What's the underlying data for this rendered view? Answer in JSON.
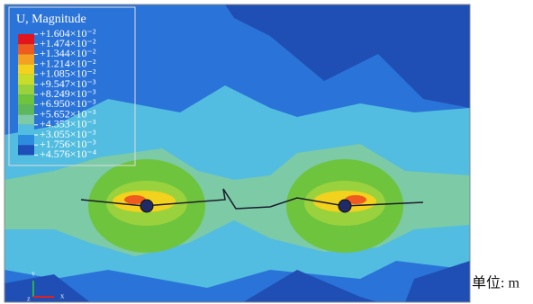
{
  "legend": {
    "title": "U, Magnitude",
    "labels": [
      "+1.604×10⁻²",
      "+1.474×10⁻²",
      "+1.344×10⁻²",
      "+1.214×10⁻²",
      "+1.085×10⁻²",
      "+9.547×10⁻³",
      "+8.249×10⁻³",
      "+6.950×10⁻³",
      "+5.652×10⁻³",
      "+4.353×10⁻³",
      "+3.055×10⁻³",
      "+1.756×10⁻³",
      "+4.576×10⁻⁴"
    ],
    "colors": [
      "#e3141b",
      "#ef5a1e",
      "#f4a021",
      "#f3d21d",
      "#c8dc2a",
      "#99d23d",
      "#6fc43e",
      "#5db85c",
      "#7ccaa6",
      "#52bde0",
      "#2d8be0",
      "#1e4fb8"
    ]
  },
  "triad": {
    "y": "Y",
    "x": "X",
    "z": "Z"
  },
  "unit": "单位: m"
}
